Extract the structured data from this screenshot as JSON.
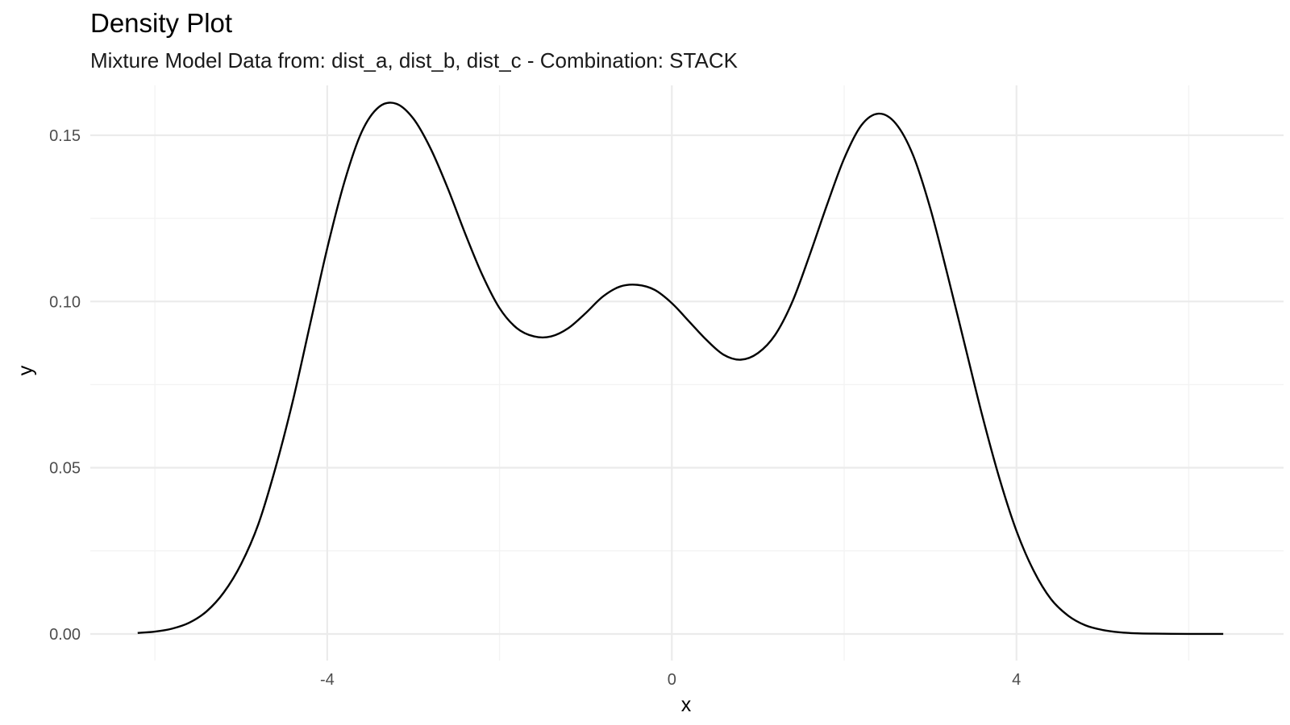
{
  "chart_data": {
    "type": "line",
    "title": "Density Plot",
    "subtitle": "Mixture Model Data from: dist_a, dist_b, dist_c - Combination: STACK",
    "xlabel": "x",
    "ylabel": "y",
    "xlim": [
      -6.75,
      7.1
    ],
    "ylim": [
      -0.008,
      0.165
    ],
    "x_ticks": [
      -4,
      0,
      4
    ],
    "x_tick_labels": [
      "-4",
      "0",
      "4"
    ],
    "x_minor_ticks": [
      -6,
      -2,
      2,
      6
    ],
    "y_ticks": [
      0.0,
      0.05,
      0.1,
      0.15
    ],
    "y_tick_labels": [
      "0.00",
      "0.05",
      "0.10",
      "0.15"
    ],
    "y_minor_ticks": [
      0.025,
      0.075,
      0.125
    ],
    "grid": true,
    "legend": "none",
    "series": [
      {
        "color": "#000000",
        "x": [
          -6.2,
          -6.0,
          -5.8,
          -5.6,
          -5.4,
          -5.2,
          -5.0,
          -4.8,
          -4.6,
          -4.4,
          -4.2,
          -4.0,
          -3.8,
          -3.6,
          -3.4,
          -3.2,
          -3.0,
          -2.8,
          -2.6,
          -2.4,
          -2.2,
          -2.0,
          -1.8,
          -1.6,
          -1.4,
          -1.2,
          -1.0,
          -0.8,
          -0.6,
          -0.4,
          -0.2,
          0.0,
          0.2,
          0.4,
          0.6,
          0.8,
          1.0,
          1.2,
          1.4,
          1.6,
          1.8,
          2.0,
          2.2,
          2.4,
          2.6,
          2.8,
          3.0,
          3.2,
          3.4,
          3.6,
          3.8,
          4.0,
          4.2,
          4.4,
          4.6,
          4.8,
          5.0,
          5.2,
          5.4,
          5.6,
          5.8,
          6.0,
          6.2,
          6.4
        ],
        "y": [
          0.0003,
          0.0007,
          0.0016,
          0.0034,
          0.0068,
          0.0125,
          0.021,
          0.033,
          0.05,
          0.07,
          0.093,
          0.116,
          0.136,
          0.151,
          0.1585,
          0.1595,
          0.155,
          0.146,
          0.134,
          0.1205,
          0.108,
          0.098,
          0.092,
          0.0895,
          0.0895,
          0.092,
          0.0965,
          0.1015,
          0.1045,
          0.105,
          0.1035,
          0.0995,
          0.094,
          0.0885,
          0.084,
          0.0825,
          0.0845,
          0.09,
          0.1,
          0.114,
          0.129,
          0.143,
          0.153,
          0.1565,
          0.1535,
          0.144,
          0.128,
          0.108,
          0.087,
          0.066,
          0.047,
          0.031,
          0.019,
          0.0105,
          0.0055,
          0.0026,
          0.0012,
          0.0005,
          0.0002,
          0.0001,
          5e-05,
          2e-05,
          1e-05,
          0.0
        ]
      }
    ]
  }
}
